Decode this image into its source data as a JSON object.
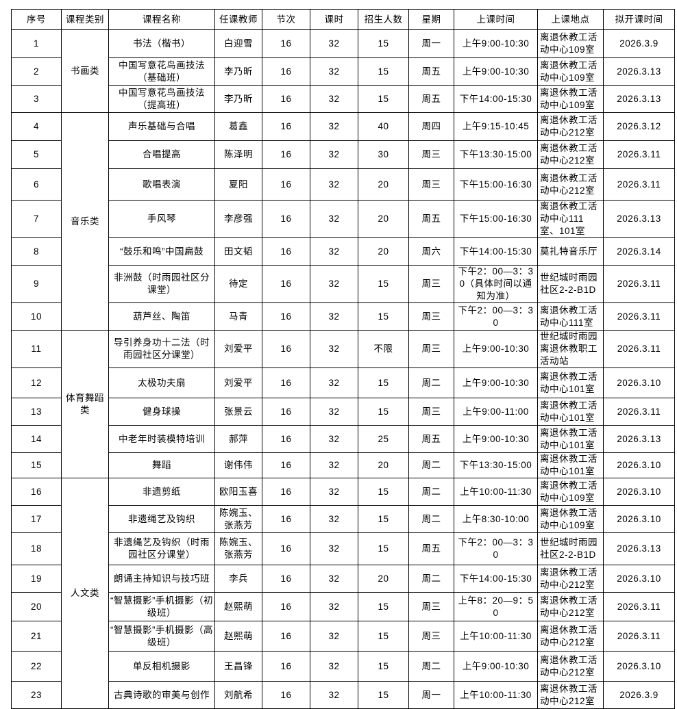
{
  "headers": [
    "序号",
    "课程类别",
    "课程名称",
    "任课教师",
    "节次",
    "课时",
    "招生人数",
    "星期",
    "上课时间",
    "上课地点",
    "拟开课时间"
  ],
  "categories": [
    {
      "label": "书画类",
      "rows": 3
    },
    {
      "label": "音乐类",
      "rows": 7
    },
    {
      "label": "体育舞蹈类",
      "rows": 5
    },
    {
      "label": "人文类",
      "rows": 8
    }
  ],
  "rows": [
    {
      "no": "1",
      "name": "书法（楷书）",
      "teacher": "白迎雪",
      "sessions": "16",
      "hours": "32",
      "enroll": "15",
      "weekday": "周一",
      "time": "上午9:00-10:30",
      "place": "离退休教工活动中心109室",
      "start": "2026.3.9"
    },
    {
      "no": "2",
      "name": "中国写意花鸟画技法（基础班）",
      "teacher": "李乃昕",
      "sessions": "16",
      "hours": "32",
      "enroll": "15",
      "weekday": "周五",
      "time": "上午9:00-10:30",
      "place": "离退休教工活动中心109室",
      "start": "2026.3.13"
    },
    {
      "no": "3",
      "name": "中国写意花鸟画技法（提高班）",
      "teacher": "李乃昕",
      "sessions": "16",
      "hours": "32",
      "enroll": "15",
      "weekday": "周五",
      "time": "下午14:00-15:30",
      "place": "离退休教工活动中心109室",
      "start": "2026.3.13"
    },
    {
      "no": "4",
      "name": "声乐基础与合唱",
      "teacher": "葛鑫",
      "sessions": "16",
      "hours": "32",
      "enroll": "40",
      "weekday": "周四",
      "time": "上午9:15-10:45",
      "place": "离退休教工活动中心212室",
      "start": "2026.3.12"
    },
    {
      "no": "5",
      "name": "合唱提高",
      "teacher": "陈泽明",
      "sessions": "16",
      "hours": "32",
      "enroll": "30",
      "weekday": "周三",
      "time": "下午13:30-15:00",
      "place": "离退休教工活动中心212室",
      "start": "2026.3.11"
    },
    {
      "no": "6",
      "name": "歌唱表演",
      "teacher": "夏阳",
      "sessions": "16",
      "hours": "32",
      "enroll": "20",
      "weekday": "周三",
      "time": "下午15:00-16:30",
      "place": "离退休教工活动中心212室",
      "start": "2026.3.11"
    },
    {
      "no": "7",
      "name": "手风琴",
      "teacher": "李彦强",
      "sessions": "16",
      "hours": "32",
      "enroll": "20",
      "weekday": "周五",
      "time": "下午15:00-16:30",
      "place": "离退休教工活动中心111室、101室",
      "start": "2026.3.13"
    },
    {
      "no": "8",
      "name": "“鼓乐和鸣”中国扁鼓",
      "teacher": "田文韬",
      "sessions": "16",
      "hours": "32",
      "enroll": "20",
      "weekday": "周六",
      "time": "下午14:00-15:30",
      "place": "莫扎特音乐厅",
      "start": "2026.3.14"
    },
    {
      "no": "9",
      "name": "非洲鼓（时雨园社区分课堂）",
      "teacher": "待定",
      "sessions": "16",
      "hours": "32",
      "enroll": "15",
      "weekday": "周三",
      "time": "下午2：00—3：30（具体时间以通知为准）",
      "place": "世纪城时雨园社区2-2-B1D",
      "start": "2026.3.11"
    },
    {
      "no": "10",
      "name": "葫芦丝、陶笛",
      "teacher": "马青",
      "sessions": "16",
      "hours": "32",
      "enroll": "15",
      "weekday": "周三",
      "time": "下午2：00—3：30",
      "place": "离退休教工活动中心111室",
      "start": "2026.3.11"
    },
    {
      "no": "11",
      "name": "导引养身功十二法（时雨园社区分课堂）",
      "teacher": "刘爱平",
      "sessions": "16",
      "hours": "32",
      "enroll": "不限",
      "weekday": "周三",
      "time": "上午9:00-10:30",
      "place": "世纪城时雨园离退休教职工活动站",
      "start": "2026.3.11"
    },
    {
      "no": "12",
      "name": "太极功夫扇",
      "teacher": "刘爱平",
      "sessions": "16",
      "hours": "32",
      "enroll": "15",
      "weekday": "周二",
      "time": "上午9:00-10:30",
      "place": "离退休教工活动中心101室",
      "start": "2026.3.10"
    },
    {
      "no": "13",
      "name": "健身球操",
      "teacher": "张景云",
      "sessions": "16",
      "hours": "32",
      "enroll": "15",
      "weekday": "周三",
      "time": "上午9:00-11:00",
      "place": "离退休教工活动中心101室",
      "start": "2026.3.11"
    },
    {
      "no": "14",
      "name": "中老年时装模特培训",
      "teacher": "郝萍",
      "sessions": "16",
      "hours": "32",
      "enroll": "25",
      "weekday": "周五",
      "time": "上午9:00-10:30",
      "place": "离退休教工活动中心101室",
      "start": "2026.3.13"
    },
    {
      "no": "15",
      "name": "舞蹈",
      "teacher": "谢伟伟",
      "sessions": "16",
      "hours": "32",
      "enroll": "20",
      "weekday": "周二",
      "time": "下午13:30-15:00",
      "place": "离退休教工活动中心101室",
      "start": "2026.3.10"
    },
    {
      "no": "16",
      "name": "非遗剪纸",
      "teacher": "欧阳玉喜",
      "sessions": "16",
      "hours": "32",
      "enroll": "15",
      "weekday": "周二",
      "time": "上午10:00-11:30",
      "place": "离退休教工活动中心109室",
      "start": "2026.3.10"
    },
    {
      "no": "17",
      "name": "非遗绳艺及钩织",
      "teacher": "陈婉玉、张燕芳",
      "sessions": "16",
      "hours": "32",
      "enroll": "15",
      "weekday": "周二",
      "time": "上午8:30-10:00",
      "place": "离退休教工活动中心109室",
      "start": "2026.3.10"
    },
    {
      "no": "18",
      "name": "非遗绳艺及钩织（时雨园社区分课堂）",
      "teacher": "陈婉玉、张燕芳",
      "sessions": "16",
      "hours": "32",
      "enroll": "15",
      "weekday": "周五",
      "time": "下午2：00—3：30",
      "place": "世纪城时雨园社区2-2-B1D",
      "start": "2026.3.13"
    },
    {
      "no": "19",
      "name": "朗诵主持知识与技巧班",
      "teacher": "李兵",
      "sessions": "16",
      "hours": "32",
      "enroll": "20",
      "weekday": "周二",
      "time": "下午14:00-15:30",
      "place": "离退休教工活动中心212室",
      "start": "2026.3.10"
    },
    {
      "no": "20",
      "name": "“智慧摄影”手机摄影（初级班）",
      "teacher": "赵熙萌",
      "sessions": "16",
      "hours": "32",
      "enroll": "15",
      "weekday": "周三",
      "time": "上午8：20—9：50",
      "place": "离退休教工活动中心212室",
      "start": "2026.3.11"
    },
    {
      "no": "21",
      "name": "“智慧摄影”手机摄影（高级班）",
      "teacher": "赵熙萌",
      "sessions": "16",
      "hours": "32",
      "enroll": "15",
      "weekday": "周三",
      "time": "上午10:00-11:30",
      "place": "离退休教工活动中心212室",
      "start": "2026.3.11"
    },
    {
      "no": "22",
      "name": "单反相机摄影",
      "teacher": "王昌锋",
      "sessions": "16",
      "hours": "32",
      "enroll": "15",
      "weekday": "周二",
      "time": "上午9:00-10:30",
      "place": "离退休教工活动中心212室",
      "start": "2026.3.10"
    },
    {
      "no": "23",
      "name": "古典诗歌的审美与创作",
      "teacher": "刘航希",
      "sessions": "16",
      "hours": "32",
      "enroll": "15",
      "weekday": "周一",
      "time": "上午10:00-11:30",
      "place": "离退休教工活动中心212室",
      "start": "2026.3.9"
    }
  ]
}
